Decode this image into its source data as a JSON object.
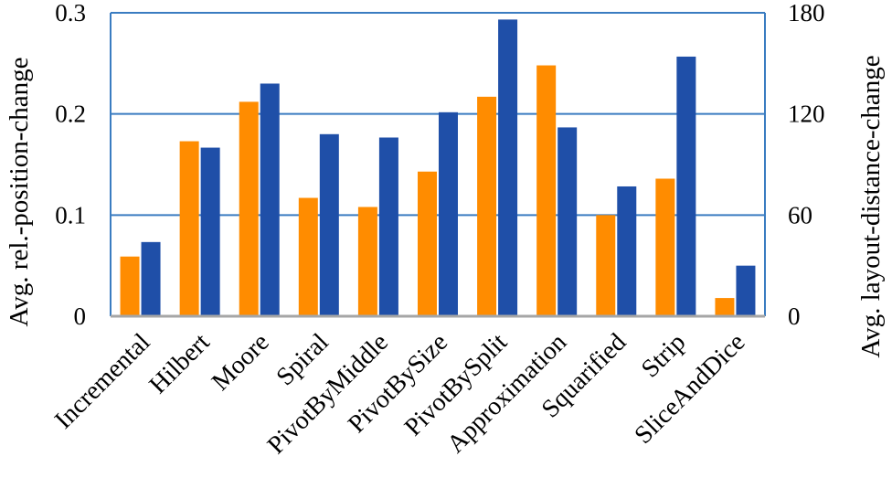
{
  "chart_data": {
    "type": "bar",
    "categories": [
      "Incremental",
      "Hilbert",
      "Moore",
      "Spiral",
      "PivotByMiddle",
      "PivotBySize",
      "PivotBySplit",
      "Approximation",
      "Squarified",
      "Strip",
      "SliceAndDice"
    ],
    "series": [
      {
        "axis": "left",
        "color": "#FF8C00",
        "values": [
          0.059,
          0.173,
          0.212,
          0.117,
          0.108,
          0.143,
          0.217,
          0.248,
          0.1,
          0.136,
          0.018
        ]
      },
      {
        "axis": "right",
        "color": "#1F4FA8",
        "values": [
          44,
          100,
          138,
          108,
          106,
          121,
          176,
          112,
          77,
          154,
          30
        ]
      }
    ],
    "ylabel": "Avg. rel.-position-change",
    "ylabel_right": "Avg. layout-distance-change",
    "ylim": [
      0,
      0.3
    ],
    "ylim_right": [
      0,
      180
    ],
    "yticks": [
      "0",
      "0.1",
      "0.2",
      "0.3"
    ],
    "yticks_right": [
      "0",
      "60",
      "120",
      "180"
    ],
    "grid": true
  }
}
